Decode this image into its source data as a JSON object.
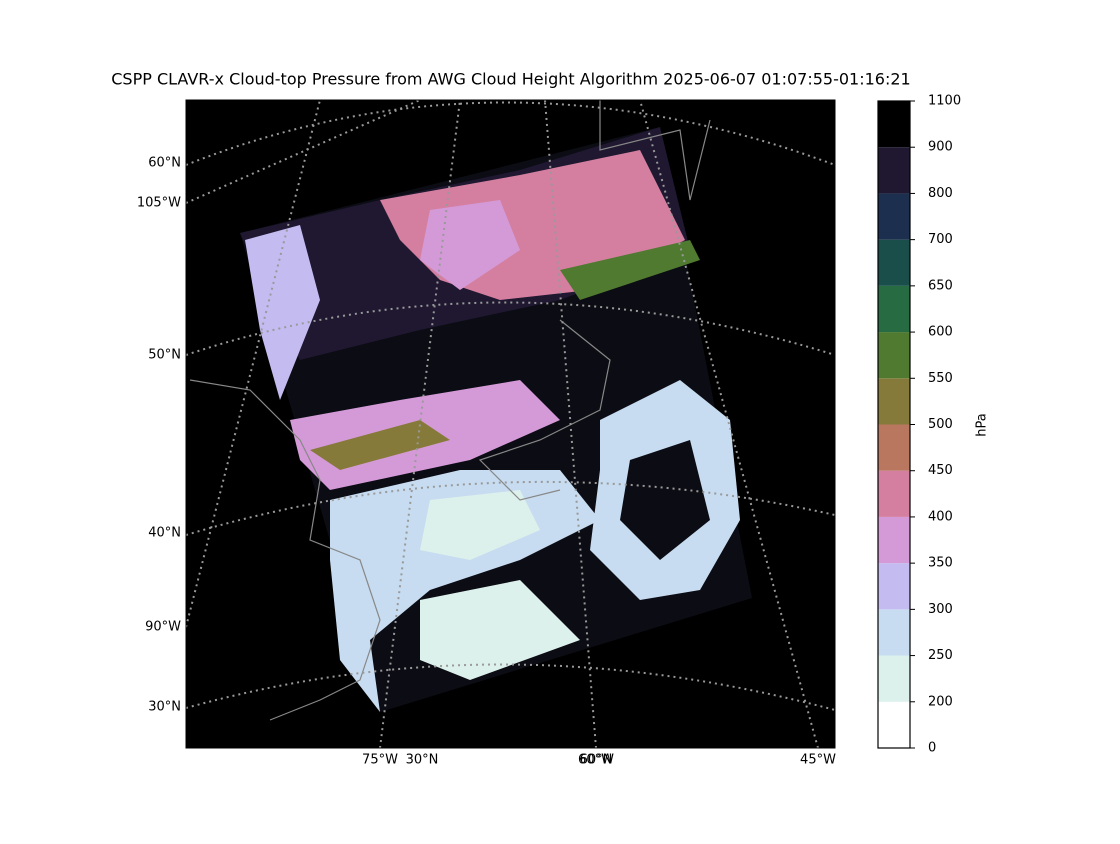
{
  "title": "CSPP CLAVR-x Cloud-top Pressure from AWG Cloud Height Algorithm 2025-06-07 01:07:55-01:16:21",
  "map": {
    "left_labels": [
      "60°N",
      "105°W",
      "50°N",
      "40°N",
      "90°W",
      "30°N"
    ],
    "bottom_labels": [
      "75°W",
      "30°N",
      "60°N",
      "60°W",
      "45°W"
    ]
  },
  "colorbar": {
    "label": "hPa",
    "boundaries": [
      0,
      200,
      250,
      300,
      350,
      400,
      450,
      500,
      550,
      600,
      650,
      700,
      800,
      900,
      1100
    ],
    "colors": [
      "#ffffff",
      "#ddf1ec",
      "#c7dcf0",
      "#c4bbf1",
      "#d49ad8",
      "#d57fa0",
      "#b97760",
      "#867a3a",
      "#4f7a30",
      "#266b41",
      "#1a4e4b",
      "#1c2f4e",
      "#1f1830",
      "#000000"
    ]
  }
}
